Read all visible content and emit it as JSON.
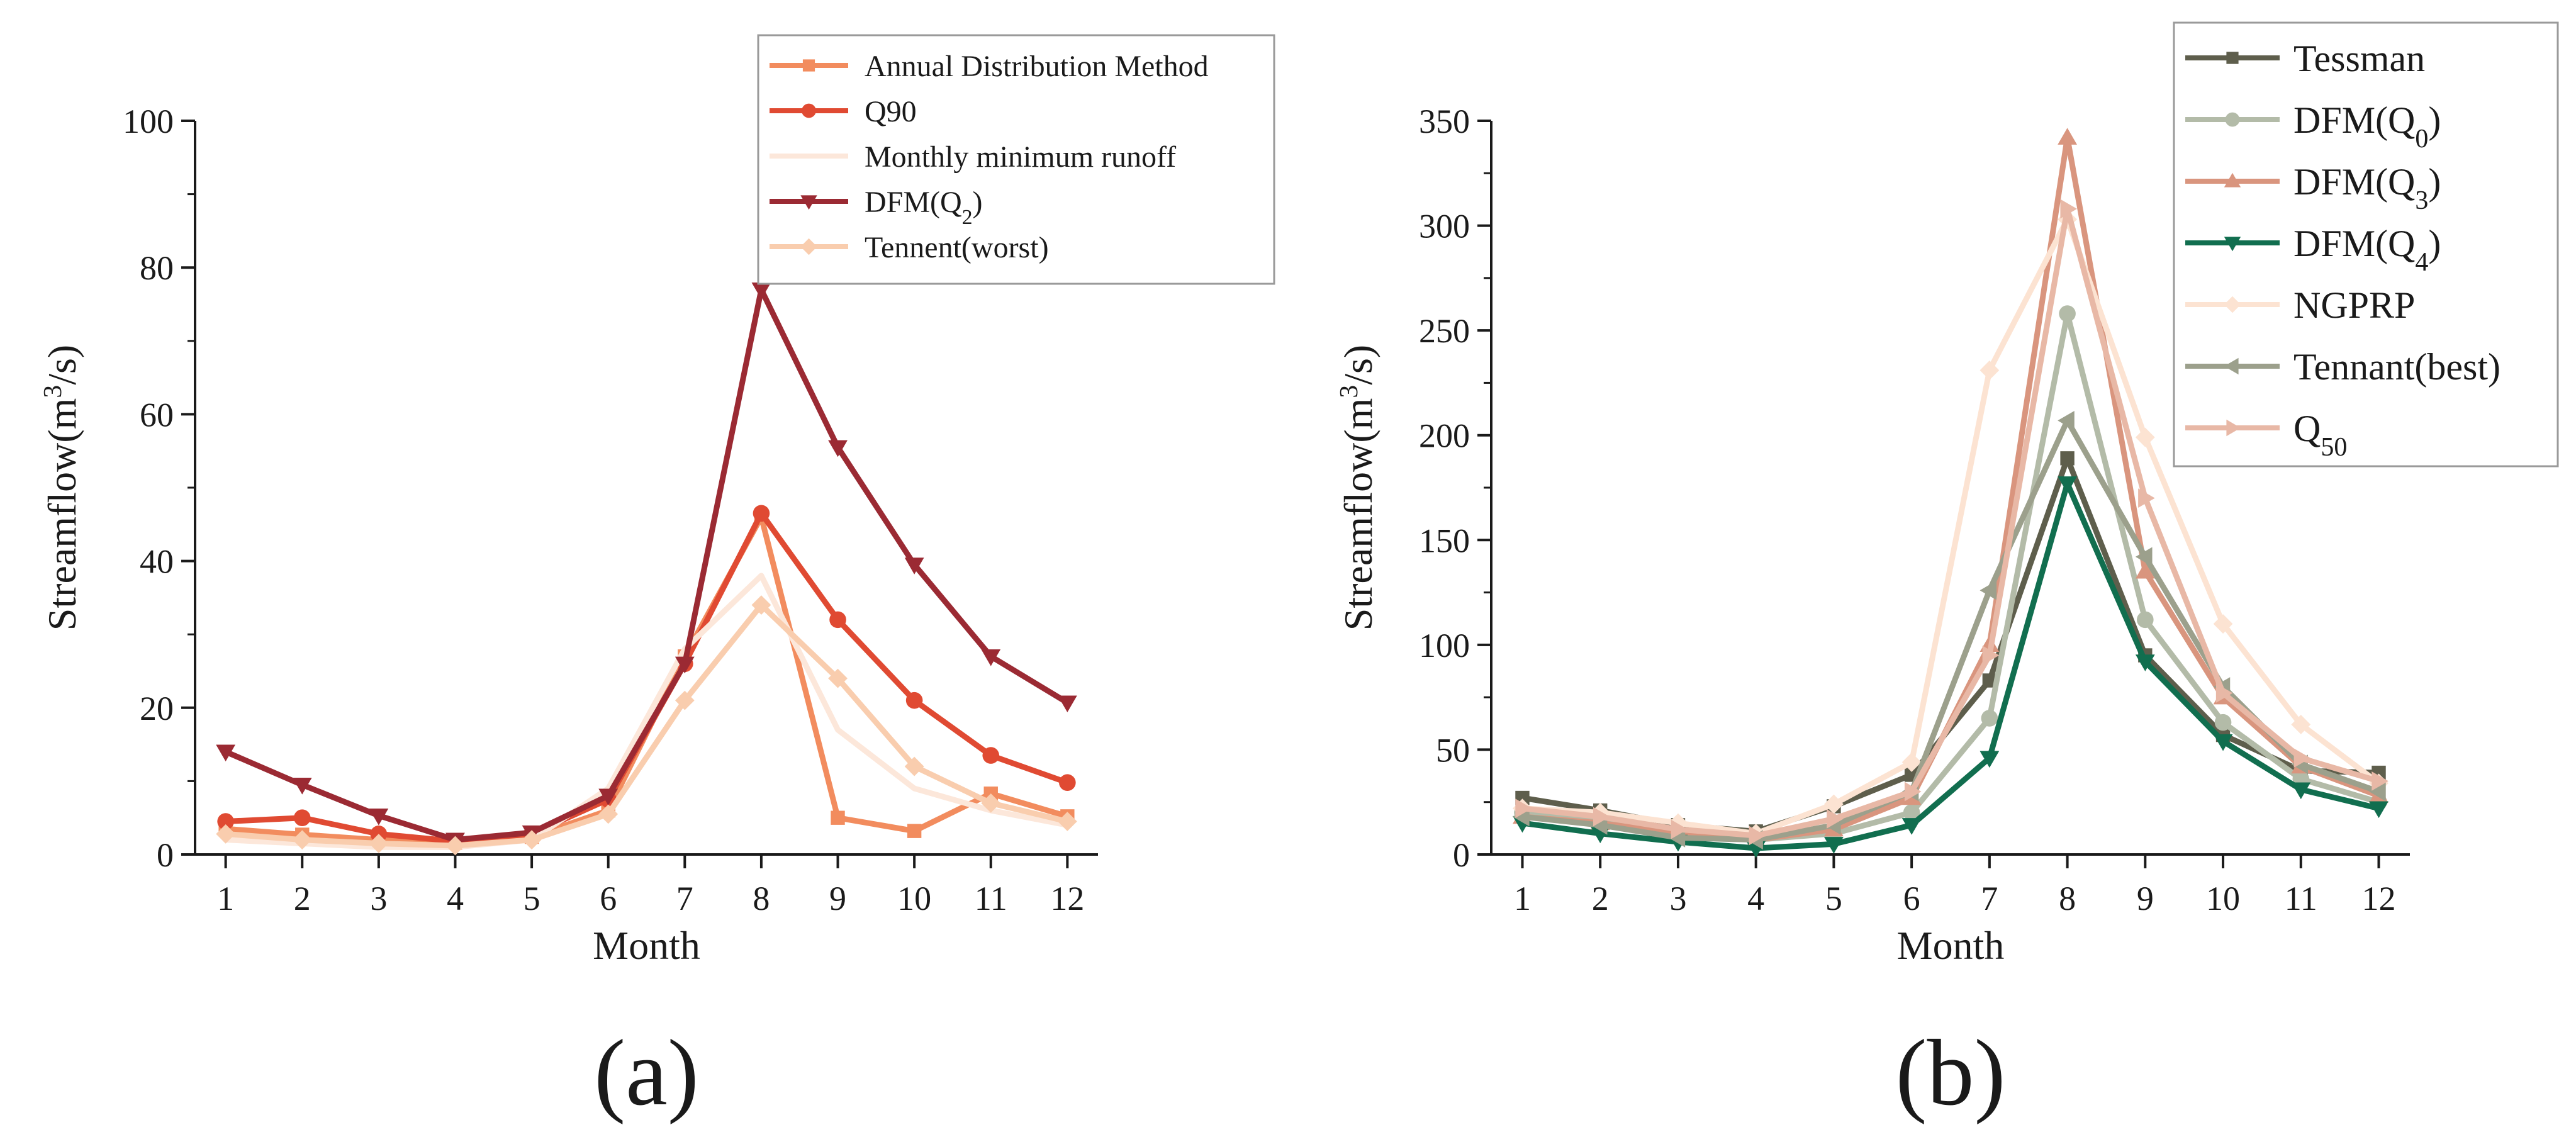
{
  "chart_data": [
    {
      "type": "line",
      "panel_label": "(a)",
      "xlabel": "Month",
      "ylabel_prefix": "Streamflow(m",
      "ylabel_sup": "3",
      "ylabel_suffix": "/s)",
      "ylim": [
        0,
        100
      ],
      "yticks": [
        0,
        20,
        40,
        60,
        80,
        100
      ],
      "x": [
        1,
        2,
        3,
        4,
        5,
        6,
        7,
        8,
        9,
        10,
        11,
        12
      ],
      "grid": false,
      "legend_position": "top-right",
      "series": [
        {
          "name": "Annual Distribution Method",
          "name_base": "Annual Distribution Method",
          "name_sub": "",
          "color": "#F28C5E",
          "marker": "square",
          "values": [
            3.5,
            2.7,
            2.0,
            1.6,
            2.4,
            6.0,
            27.0,
            46.0,
            5.0,
            3.2,
            8.3,
            5.2
          ]
        },
        {
          "name": "Q90",
          "name_base": "Q90",
          "name_sub": "",
          "color": "#E04A32",
          "marker": "circle",
          "values": [
            4.5,
            5.0,
            2.8,
            1.8,
            2.8,
            7.5,
            26.0,
            46.5,
            32.0,
            21.0,
            13.5,
            9.8
          ]
        },
        {
          "name": "Monthly minimum runoff",
          "name_base": "Monthly minimum runoff",
          "name_sub": "",
          "color": "#FCE7DA",
          "marker": "none",
          "values": [
            2.0,
            1.5,
            1.0,
            1.0,
            2.0,
            9.0,
            28.0,
            38.0,
            17.0,
            9.0,
            6.0,
            4.0
          ]
        },
        {
          "name": "DFM(Q2)",
          "name_base": "DFM(Q",
          "name_sub": "2",
          "name_suffix": ")",
          "color": "#9B2A33",
          "marker": "triangle-down",
          "values": [
            14.0,
            9.5,
            5.3,
            2.0,
            3.0,
            8.0,
            26.0,
            77.0,
            55.5,
            39.5,
            27.0,
            20.7
          ]
        },
        {
          "name": "Tennent(worst)",
          "name_base": "Tennent(worst)",
          "name_sub": "",
          "color": "#F9CDAE",
          "marker": "diamond",
          "values": [
            2.8,
            2.0,
            1.5,
            1.2,
            2.0,
            5.5,
            21.0,
            34.0,
            24.0,
            12.0,
            7.0,
            4.5
          ]
        }
      ]
    },
    {
      "type": "line",
      "panel_label": "(b)",
      "xlabel": "Month",
      "ylabel_prefix": "Streamflow(m",
      "ylabel_sup": "3",
      "ylabel_suffix": "/s)",
      "ylim": [
        0,
        350
      ],
      "yticks": [
        0,
        50,
        100,
        150,
        200,
        250,
        300,
        350
      ],
      "x": [
        1,
        2,
        3,
        4,
        5,
        6,
        7,
        8,
        9,
        10,
        11,
        12
      ],
      "grid": false,
      "legend_position": "top-right",
      "series": [
        {
          "name": "Tessman",
          "name_base": "Tessman",
          "name_sub": "",
          "color": "#5E5E4C",
          "marker": "square",
          "values": [
            27,
            21,
            14,
            11,
            23,
            38,
            83,
            189,
            95,
            57,
            40,
            39
          ]
        },
        {
          "name": "DFM(Q0)",
          "name_base": "DFM(Q",
          "name_sub": "0",
          "name_suffix": ")",
          "color": "#B3BBA8",
          "marker": "circle",
          "values": [
            20,
            16,
            10,
            7,
            10,
            20,
            65,
            258,
            112,
            63,
            36,
            25
          ]
        },
        {
          "name": "DFM(Q3)",
          "name_base": "DFM(Q",
          "name_sub": "3",
          "name_suffix": ")",
          "color": "#D9957E",
          "marker": "triangle-up",
          "values": [
            18,
            15,
            10,
            7,
            12,
            27,
            100,
            342,
            135,
            75,
            42,
            28
          ]
        },
        {
          "name": "DFM(Q4)",
          "name_base": "DFM(Q",
          "name_sub": "4",
          "name_suffix": ")",
          "color": "#116E4F",
          "marker": "triangle-down",
          "values": [
            15,
            10,
            6,
            3,
            5,
            14,
            46,
            177,
            92,
            54,
            31,
            22
          ]
        },
        {
          "name": "NGPRP",
          "name_base": "NGPRP",
          "name_sub": "",
          "color": "#FCE3D2",
          "marker": "diamond",
          "values": [
            22,
            20,
            15,
            10,
            24,
            44,
            231,
            303,
            199,
            110,
            62,
            34
          ]
        },
        {
          "name": "Tennant(best)",
          "name_base": "Tennant(best)",
          "name_sub": "",
          "color": "#9CA08C",
          "marker": "triangle-left",
          "values": [
            18,
            14,
            8,
            7,
            14,
            30,
            126,
            207,
            142,
            80,
            43,
            30
          ]
        },
        {
          "name": "Q50",
          "name_base": "Q",
          "name_sub": "50",
          "name_suffix": "",
          "color": "#E8B8A6",
          "marker": "triangle-right",
          "values": [
            22,
            18,
            12,
            9,
            17,
            30,
            95,
            308,
            170,
            77,
            46,
            35
          ]
        }
      ]
    }
  ]
}
